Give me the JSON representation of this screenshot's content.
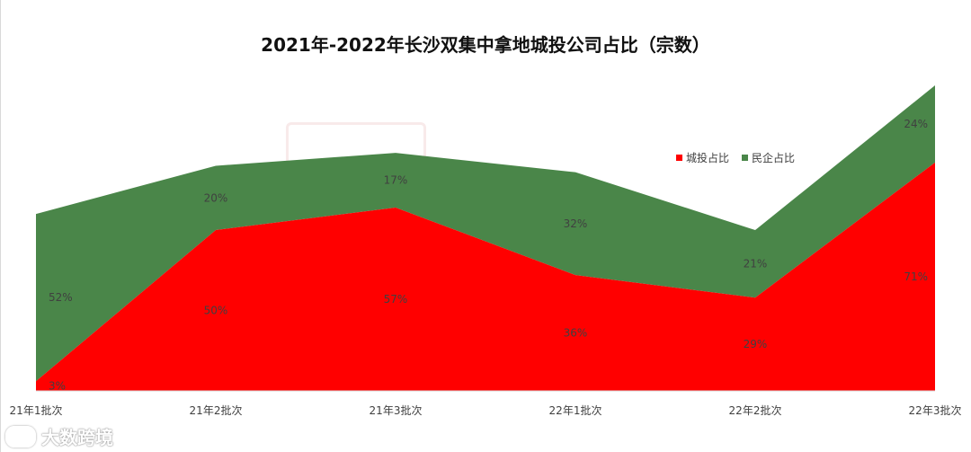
{
  "chart_data": {
    "type": "area",
    "stacked": true,
    "title": "2021年-2022年长沙双集中拿地城投公司占比（宗数）",
    "categories": [
      "21年1批次",
      "21年2批次",
      "21年3批次",
      "22年1批次",
      "22年2批次",
      "22年3批次"
    ],
    "series": [
      {
        "name": "城投占比",
        "color": "#ff0000",
        "values": [
          3,
          50,
          57,
          36,
          29,
          71
        ],
        "labels": [
          "3%",
          "50%",
          "57%",
          "36%",
          "29%",
          "71%"
        ]
      },
      {
        "name": "民企占比",
        "color": "#4a8649",
        "values": [
          52,
          20,
          17,
          32,
          21,
          24
        ],
        "labels": [
          "52%",
          "20%",
          "17%",
          "32%",
          "21%",
          "24%"
        ]
      }
    ],
    "ylim": [
      0,
      100
    ],
    "grid": false,
    "legend_position": "top-right"
  },
  "watermark": {
    "text": "大数跨境"
  }
}
